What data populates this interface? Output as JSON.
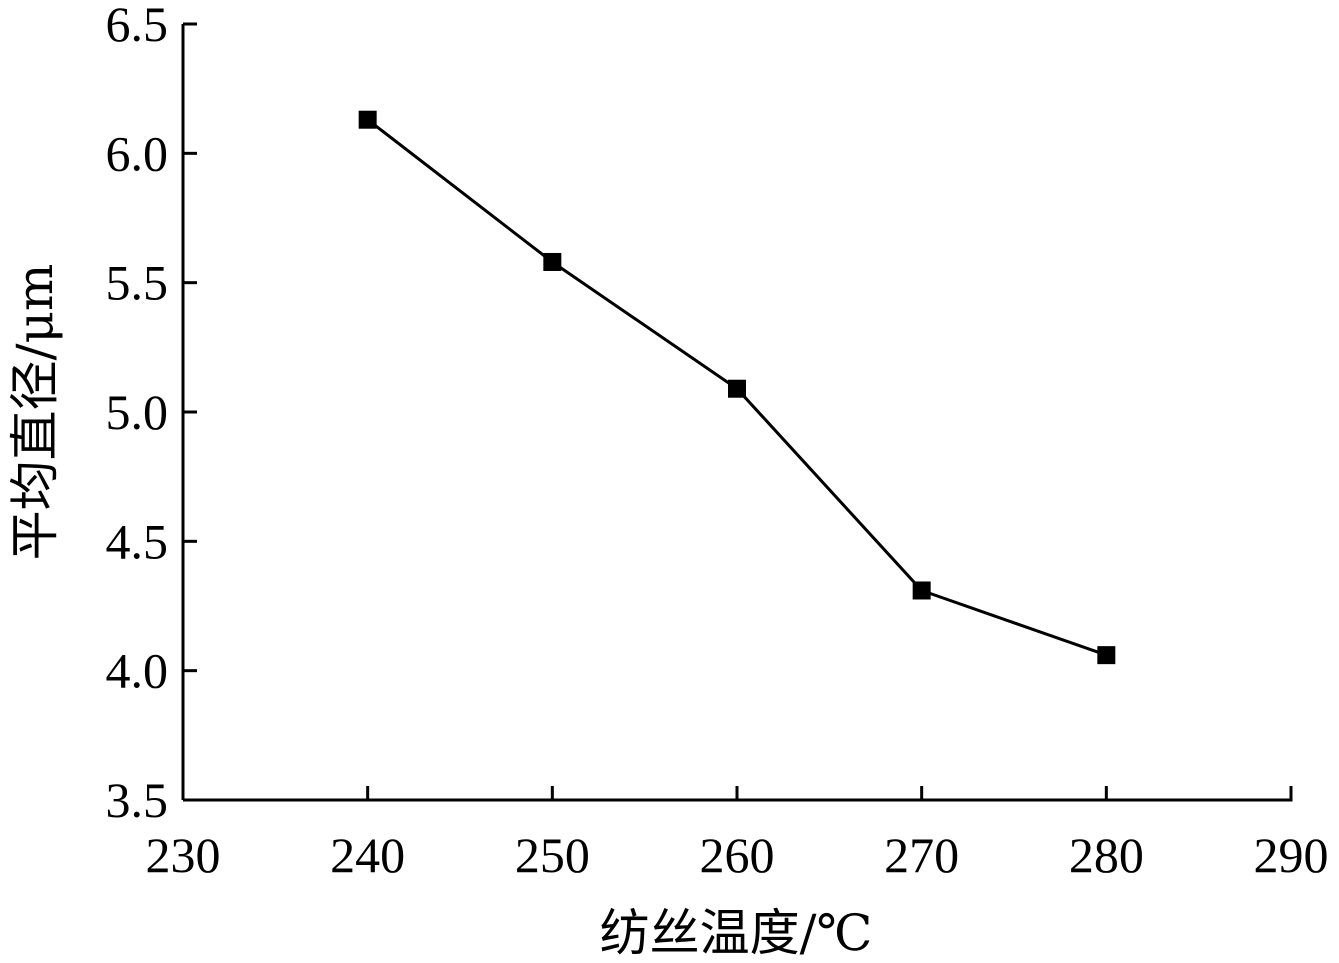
{
  "chart_data": {
    "type": "line",
    "title": "",
    "xlabel": "纺丝温度/℃",
    "ylabel": "平均直径/μm",
    "xlim": [
      230,
      290
    ],
    "ylim": [
      3.5,
      6.5
    ],
    "xticks": [
      230,
      240,
      250,
      260,
      270,
      280,
      290
    ],
    "yticks": [
      3.5,
      4.0,
      4.5,
      5.0,
      5.5,
      6.0,
      6.5
    ],
    "grid": false,
    "legend": "none",
    "series": [
      {
        "marker": "square",
        "color": "#000000",
        "x": [
          240,
          250,
          260,
          270,
          280
        ],
        "y": [
          6.13,
          5.58,
          5.09,
          4.31,
          4.06
        ]
      }
    ]
  }
}
